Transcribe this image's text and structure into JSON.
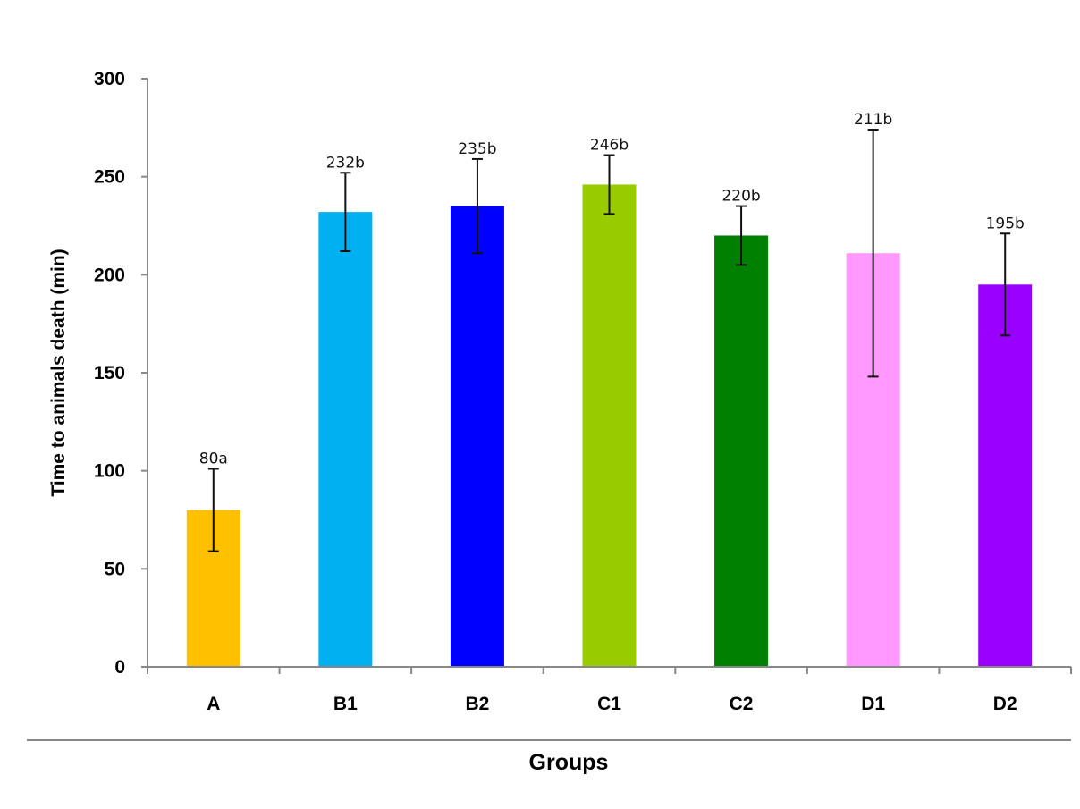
{
  "chart_data": {
    "type": "bar",
    "title": "",
    "xlabel": "Groups",
    "ylabel": "Time to animals death (min)",
    "ylim": [
      0,
      300
    ],
    "yticks": [
      0,
      50,
      100,
      150,
      200,
      250,
      300
    ],
    "grid": false,
    "categories": [
      "A",
      "B1",
      "B2",
      "C1",
      "C2",
      "D1",
      "D2"
    ],
    "values": [
      80,
      232,
      235,
      246,
      220,
      211,
      195
    ],
    "errors": [
      21,
      20,
      24,
      15,
      15,
      63,
      26
    ],
    "data_labels": [
      "80a",
      "232b",
      "235b",
      "246b",
      "220b",
      "211b",
      "195b"
    ],
    "colors": [
      "#FFC000",
      "#00B0F0",
      "#0000FF",
      "#99CC00",
      "#008000",
      "#FF99FF",
      "#9900FF"
    ]
  }
}
